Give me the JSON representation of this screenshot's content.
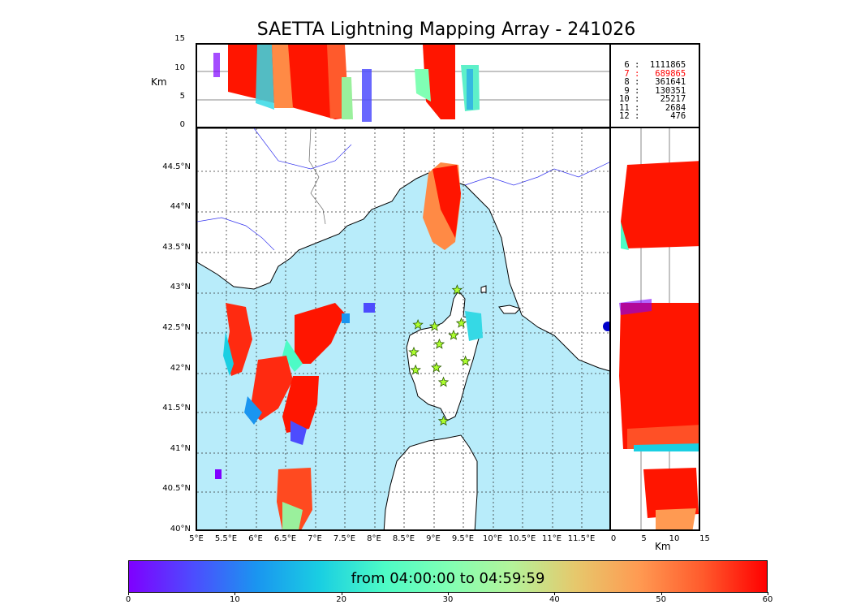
{
  "title": "SAETTA Lightning Mapping Array - 241026",
  "altitude_unit_top": "Km",
  "altitude_unit_side": "Km",
  "altitude_ticks": [
    "0",
    "5",
    "10",
    "15"
  ],
  "lon_ticks": [
    "5°E",
    "5.5°E",
    "6°E",
    "6.5°E",
    "7°E",
    "7.5°E",
    "8°E",
    "8.5°E",
    "9°E",
    "9.5°E",
    "10°E",
    "10.5°E",
    "11°E",
    "11.5°E"
  ],
  "lat_ticks": [
    "40°N",
    "40.5°N",
    "41°N",
    "41.5°N",
    "42°N",
    "42.5°N",
    "43°N",
    "43.5°N",
    "44°N",
    "44.5°N"
  ],
  "station_stats": [
    {
      "stations": "6",
      "count": "1111865",
      "color": "#000000"
    },
    {
      "stations": "7",
      "count": "689865",
      "color": "#ff0000"
    },
    {
      "stations": "8",
      "count": "361641",
      "color": "#000000"
    },
    {
      "stations": "9",
      "count": "130351",
      "color": "#000000"
    },
    {
      "stations": "10",
      "count": "25217",
      "color": "#000000"
    },
    {
      "stations": "11",
      "count": "2684",
      "color": "#000000"
    },
    {
      "stations": "12",
      "count": "476",
      "color": "#000000"
    }
  ],
  "colorbar": {
    "label": "from 04:00:00 to 04:59:59",
    "ticks": [
      "0",
      "10",
      "20",
      "30",
      "40",
      "50",
      "60"
    ],
    "colormap": "rainbow",
    "colors": [
      "#7f00ff",
      "#1a95f0",
      "#4dfbc6",
      "#b4f39a",
      "#ff9a52",
      "#ff0000"
    ]
  },
  "map": {
    "sea_color": "#b8ecfa",
    "land_color": "#ffffff",
    "station_color": "#adff2f",
    "stations": [
      {
        "lon": 9.38,
        "lat": 43.0
      },
      {
        "lon": 8.72,
        "lat": 42.57
      },
      {
        "lon": 9.0,
        "lat": 42.55
      },
      {
        "lon": 9.45,
        "lat": 42.59
      },
      {
        "lon": 9.32,
        "lat": 42.44
      },
      {
        "lon": 9.08,
        "lat": 42.33
      },
      {
        "lon": 8.65,
        "lat": 42.23
      },
      {
        "lon": 9.52,
        "lat": 42.12
      },
      {
        "lon": 8.68,
        "lat": 42.01
      },
      {
        "lon": 9.03,
        "lat": 42.04
      },
      {
        "lon": 9.15,
        "lat": 41.86
      },
      {
        "lon": 9.15,
        "lat": 41.38
      }
    ]
  }
}
